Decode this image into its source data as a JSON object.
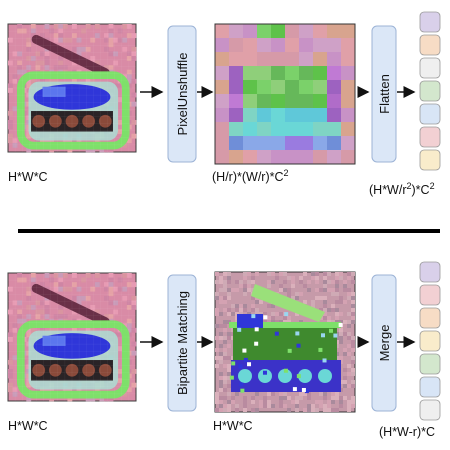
{
  "top_row": {
    "input_label": "H*W*C",
    "op1_label": "PixelUnshuffle",
    "mid_label_parts": [
      "(H/r)*(W/r)*C",
      "2"
    ],
    "op2_label": "Flatten",
    "out_label_parts": [
      "(H*W/r",
      "2",
      ")*C",
      "2"
    ],
    "token_colors": [
      "#d9d0ea",
      "#f7dcc5",
      "#efefef",
      "#d3e7cd",
      "#d8e5f6",
      "#f2d0d3",
      "#f9eccb"
    ]
  },
  "bottom_row": {
    "input_label": "H*W*C",
    "op1_label": "Bipartite Matching",
    "mid_label": "H*W*C",
    "op2_label": "Merge",
    "out_label": "(H*W-r)*C",
    "token_colors": [
      "#d9d0ea",
      "#f2d0d3",
      "#f7dcc5",
      "#f9eccb",
      "#d3e7cd",
      "#d8e5f6",
      "#efefef"
    ]
  },
  "colors": {
    "op_box_fill": "#dbe7f7",
    "op_box_stroke": "#9cb3d6",
    "divider": "#000000",
    "image_bg": "#d98ba6",
    "tank_blue": "#2f36d9",
    "tank_green": "#7ee06a",
    "cannon": "#6a3048"
  }
}
